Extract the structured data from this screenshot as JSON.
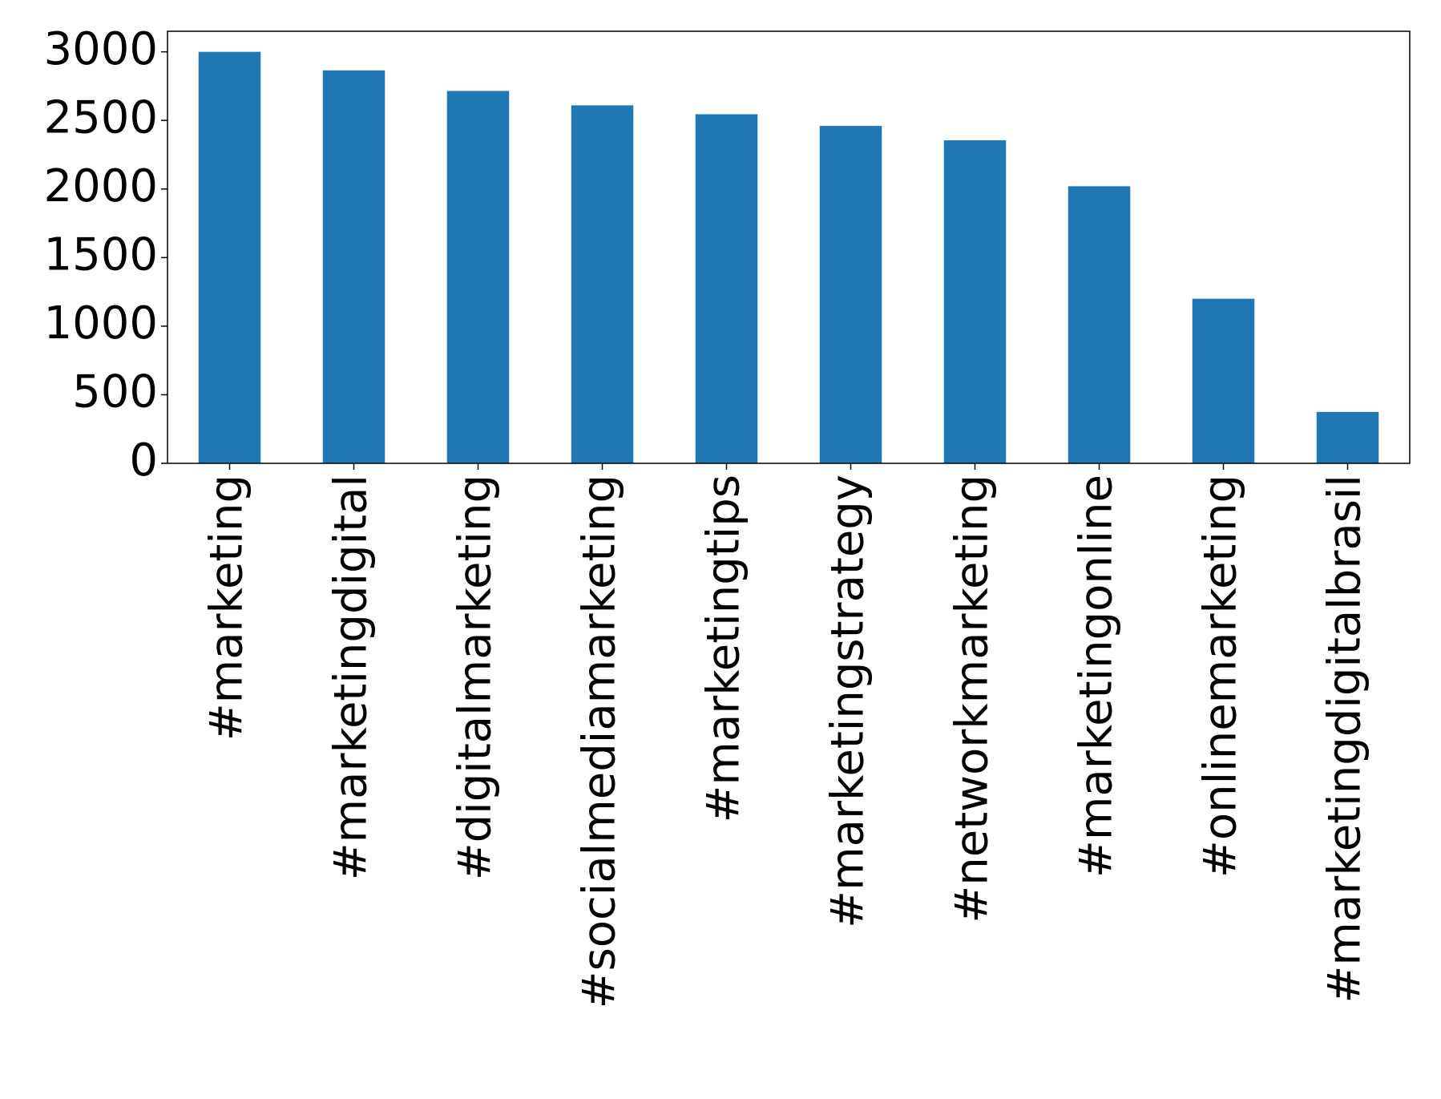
{
  "chart_data": {
    "type": "bar",
    "categories": [
      "#marketing",
      "#marketingdigital",
      "#digitalmarketing",
      "#socialmediamarketing",
      "#marketingtips",
      "#marketingstrategy",
      "#networkmarketing",
      "#marketingonline",
      "#onlinemarketing",
      "#marketingdigitalbrasil"
    ],
    "values": [
      3000,
      2865,
      2715,
      2610,
      2545,
      2460,
      2355,
      2020,
      1200,
      375
    ],
    "color": "#1f77b4",
    "ylim": [
      0,
      3150
    ],
    "yticks": [
      0,
      500,
      1000,
      1500,
      2000,
      2500,
      3000
    ],
    "grid": false
  }
}
